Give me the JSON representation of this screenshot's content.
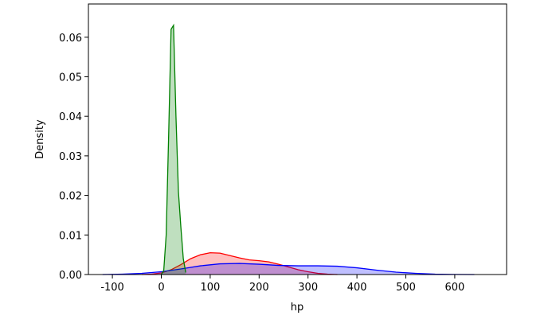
{
  "chart_data": {
    "type": "kde",
    "xlabel": "hp",
    "ylabel": "Density",
    "xlim": [
      -149,
      706
    ],
    "ylim": [
      0,
      0.0684
    ],
    "xticks": [
      -100,
      0,
      100,
      200,
      300,
      400,
      500,
      600
    ],
    "yticks": [
      {
        "value": 0,
        "label": "0.00"
      },
      {
        "value": 0.01,
        "label": "0.01"
      },
      {
        "value": 0.02,
        "label": "0.02"
      },
      {
        "value": 0.03,
        "label": "0.03"
      },
      {
        "value": 0.04,
        "label": "0.04"
      },
      {
        "value": 0.05,
        "label": "0.05"
      },
      {
        "value": 0.06,
        "label": "0.06"
      }
    ],
    "series": [
      {
        "color": "#ff0000",
        "x": [
          -40,
          -20,
          0,
          20,
          40,
          60,
          80,
          100,
          120,
          140,
          160,
          180,
          200,
          220,
          240,
          260,
          280,
          300,
          320,
          340,
          360
        ],
        "values": [
          0,
          0.0001,
          0.0004,
          0.0012,
          0.0025,
          0.004,
          0.005,
          0.0055,
          0.0054,
          0.0048,
          0.0042,
          0.0037,
          0.0035,
          0.0032,
          0.0026,
          0.0019,
          0.0012,
          0.0007,
          0.0003,
          0.0001,
          0
        ]
      },
      {
        "color": "#0000ff",
        "x": [
          -120,
          -80,
          -40,
          0,
          40,
          80,
          120,
          160,
          200,
          240,
          280,
          320,
          360,
          400,
          440,
          480,
          520,
          560,
          600,
          640
        ],
        "values": [
          0,
          0.0001,
          0.0003,
          0.0007,
          0.0014,
          0.0022,
          0.0027,
          0.0028,
          0.0026,
          0.0023,
          0.0022,
          0.0022,
          0.0021,
          0.0017,
          0.0011,
          0.0006,
          0.0003,
          0.0001,
          3e-05,
          0
        ]
      },
      {
        "color": "#008000",
        "x": [
          0,
          5,
          10,
          15,
          20,
          25,
          30,
          35,
          40,
          45,
          50
        ],
        "values": [
          0,
          0.001,
          0.01,
          0.035,
          0.062,
          0.063,
          0.04,
          0.021,
          0.012,
          0.004,
          0.0005
        ]
      }
    ]
  }
}
